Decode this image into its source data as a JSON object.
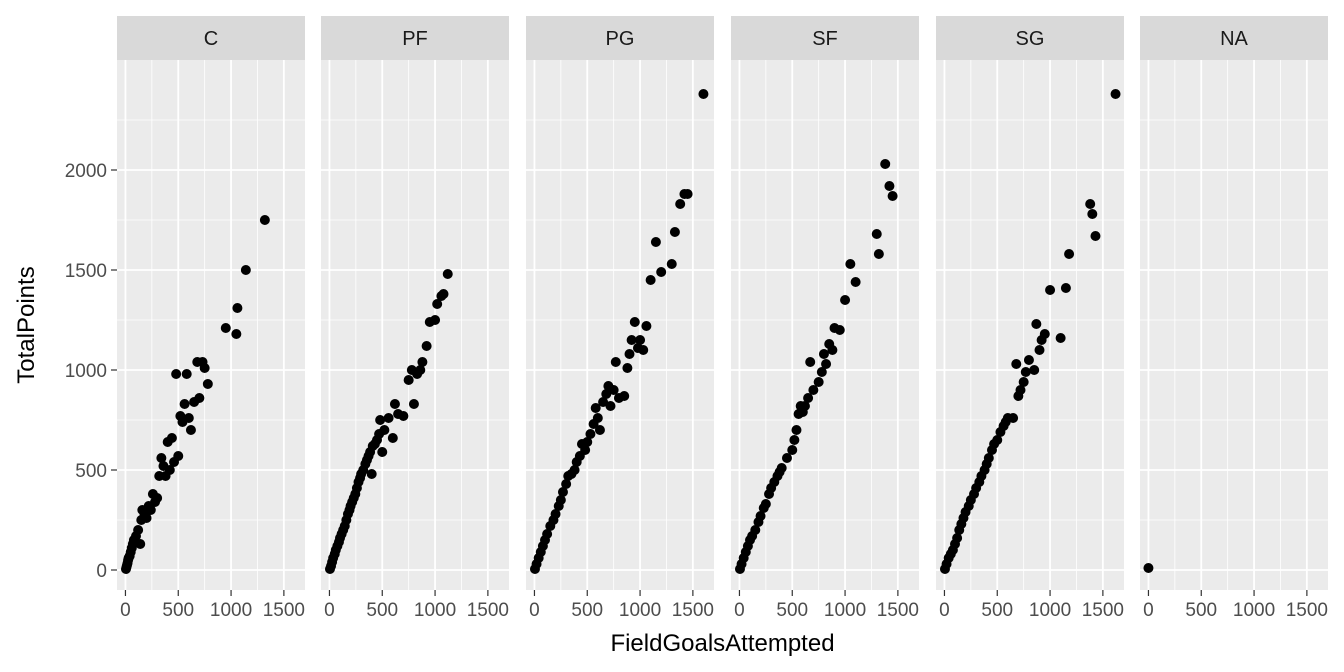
{
  "chart_data": {
    "type": "scatter",
    "facet_by": "position",
    "xlabel": "FieldGoalsAttempted",
    "ylabel": "TotalPoints",
    "xlim": [
      -80,
      1700
    ],
    "ylim": [
      -100,
      2550
    ],
    "x_ticks": [
      0,
      500,
      1000,
      1500
    ],
    "x_tick_labels": [
      "0",
      "500",
      "1000",
      "1500"
    ],
    "y_ticks": [
      0,
      500,
      1000,
      1500,
      2000
    ],
    "y_tick_labels": [
      "0",
      "500",
      "1000",
      "1500",
      "2000"
    ],
    "grid": true,
    "colors": {
      "panel_bg": "#EBEBEB",
      "strip_bg": "#D9D9D9",
      "grid_major": "#FFFFFF",
      "point": "#000000"
    },
    "panels": [
      {
        "name": "C",
        "points": [
          [
            5,
            5
          ],
          [
            10,
            15
          ],
          [
            15,
            25
          ],
          [
            20,
            35
          ],
          [
            25,
            50
          ],
          [
            30,
            60
          ],
          [
            40,
            70
          ],
          [
            50,
            90
          ],
          [
            60,
            110
          ],
          [
            70,
            130
          ],
          [
            80,
            150
          ],
          [
            100,
            170
          ],
          [
            120,
            200
          ],
          [
            140,
            130
          ],
          [
            150,
            250
          ],
          [
            160,
            300
          ],
          [
            180,
            280
          ],
          [
            200,
            260
          ],
          [
            220,
            320
          ],
          [
            240,
            300
          ],
          [
            260,
            380
          ],
          [
            280,
            340
          ],
          [
            300,
            360
          ],
          [
            320,
            470
          ],
          [
            340,
            560
          ],
          [
            360,
            520
          ],
          [
            380,
            470
          ],
          [
            400,
            640
          ],
          [
            420,
            500
          ],
          [
            440,
            660
          ],
          [
            460,
            540
          ],
          [
            480,
            980
          ],
          [
            500,
            570
          ],
          [
            520,
            770
          ],
          [
            540,
            740
          ],
          [
            560,
            830
          ],
          [
            580,
            980
          ],
          [
            600,
            760
          ],
          [
            620,
            700
          ],
          [
            650,
            840
          ],
          [
            680,
            1040
          ],
          [
            700,
            860
          ],
          [
            730,
            1040
          ],
          [
            750,
            1010
          ],
          [
            780,
            930
          ],
          [
            950,
            1210
          ],
          [
            1050,
            1180
          ],
          [
            1060,
            1310
          ],
          [
            1140,
            1500
          ],
          [
            1320,
            1750
          ]
        ]
      },
      {
        "name": "PF",
        "points": [
          [
            5,
            5
          ],
          [
            15,
            20
          ],
          [
            25,
            40
          ],
          [
            35,
            60
          ],
          [
            50,
            80
          ],
          [
            60,
            100
          ],
          [
            75,
            120
          ],
          [
            90,
            140
          ],
          [
            100,
            160
          ],
          [
            115,
            180
          ],
          [
            130,
            200
          ],
          [
            145,
            220
          ],
          [
            160,
            250
          ],
          [
            175,
            280
          ],
          [
            190,
            300
          ],
          [
            200,
            320
          ],
          [
            215,
            340
          ],
          [
            230,
            360
          ],
          [
            245,
            380
          ],
          [
            260,
            410
          ],
          [
            275,
            440
          ],
          [
            290,
            460
          ],
          [
            300,
            480
          ],
          [
            320,
            500
          ],
          [
            340,
            530
          ],
          [
            355,
            550
          ],
          [
            370,
            570
          ],
          [
            385,
            590
          ],
          [
            400,
            480
          ],
          [
            410,
            620
          ],
          [
            430,
            630
          ],
          [
            450,
            650
          ],
          [
            470,
            680
          ],
          [
            480,
            750
          ],
          [
            500,
            590
          ],
          [
            520,
            700
          ],
          [
            560,
            760
          ],
          [
            600,
            660
          ],
          [
            620,
            830
          ],
          [
            650,
            780
          ],
          [
            700,
            770
          ],
          [
            750,
            950
          ],
          [
            780,
            1000
          ],
          [
            800,
            830
          ],
          [
            830,
            980
          ],
          [
            860,
            1000
          ],
          [
            880,
            1040
          ],
          [
            920,
            1120
          ],
          [
            950,
            1240
          ],
          [
            1000,
            1250
          ],
          [
            1020,
            1330
          ],
          [
            1060,
            1370
          ],
          [
            1080,
            1380
          ],
          [
            1120,
            1480
          ]
        ]
      },
      {
        "name": "PG",
        "points": [
          [
            5,
            5
          ],
          [
            20,
            30
          ],
          [
            40,
            60
          ],
          [
            60,
            90
          ],
          [
            80,
            120
          ],
          [
            100,
            150
          ],
          [
            120,
            180
          ],
          [
            150,
            220
          ],
          [
            180,
            250
          ],
          [
            200,
            280
          ],
          [
            230,
            320
          ],
          [
            250,
            350
          ],
          [
            270,
            390
          ],
          [
            300,
            430
          ],
          [
            320,
            470
          ],
          [
            350,
            480
          ],
          [
            380,
            500
          ],
          [
            400,
            540
          ],
          [
            430,
            570
          ],
          [
            450,
            630
          ],
          [
            480,
            600
          ],
          [
            500,
            640
          ],
          [
            530,
            680
          ],
          [
            560,
            730
          ],
          [
            580,
            810
          ],
          [
            600,
            760
          ],
          [
            620,
            700
          ],
          [
            650,
            840
          ],
          [
            680,
            880
          ],
          [
            700,
            920
          ],
          [
            720,
            820
          ],
          [
            750,
            900
          ],
          [
            770,
            1040
          ],
          [
            800,
            860
          ],
          [
            850,
            870
          ],
          [
            880,
            1010
          ],
          [
            900,
            1080
          ],
          [
            920,
            1150
          ],
          [
            950,
            1240
          ],
          [
            980,
            1110
          ],
          [
            1000,
            1150
          ],
          [
            1030,
            1100
          ],
          [
            1060,
            1220
          ],
          [
            1100,
            1450
          ],
          [
            1150,
            1640
          ],
          [
            1200,
            1490
          ],
          [
            1300,
            1530
          ],
          [
            1330,
            1690
          ],
          [
            1380,
            1830
          ],
          [
            1420,
            1880
          ],
          [
            1450,
            1880
          ],
          [
            1600,
            2380
          ]
        ]
      },
      {
        "name": "SF",
        "points": [
          [
            5,
            5
          ],
          [
            20,
            30
          ],
          [
            40,
            60
          ],
          [
            60,
            90
          ],
          [
            80,
            120
          ],
          [
            100,
            150
          ],
          [
            120,
            170
          ],
          [
            150,
            200
          ],
          [
            180,
            240
          ],
          [
            200,
            270
          ],
          [
            230,
            310
          ],
          [
            250,
            330
          ],
          [
            280,
            380
          ],
          [
            300,
            410
          ],
          [
            330,
            440
          ],
          [
            360,
            470
          ],
          [
            380,
            490
          ],
          [
            400,
            510
          ],
          [
            450,
            560
          ],
          [
            500,
            600
          ],
          [
            520,
            650
          ],
          [
            540,
            700
          ],
          [
            560,
            780
          ],
          [
            580,
            820
          ],
          [
            600,
            790
          ],
          [
            620,
            820
          ],
          [
            650,
            860
          ],
          [
            670,
            1040
          ],
          [
            700,
            900
          ],
          [
            750,
            940
          ],
          [
            780,
            990
          ],
          [
            800,
            1080
          ],
          [
            820,
            1030
          ],
          [
            850,
            1130
          ],
          [
            880,
            1100
          ],
          [
            900,
            1210
          ],
          [
            950,
            1200
          ],
          [
            1000,
            1350
          ],
          [
            1050,
            1530
          ],
          [
            1100,
            1440
          ],
          [
            1300,
            1680
          ],
          [
            1320,
            1580
          ],
          [
            1380,
            2030
          ],
          [
            1420,
            1920
          ],
          [
            1450,
            1870
          ]
        ]
      },
      {
        "name": "SG",
        "points": [
          [
            5,
            5
          ],
          [
            20,
            30
          ],
          [
            40,
            60
          ],
          [
            60,
            80
          ],
          [
            80,
            100
          ],
          [
            100,
            130
          ],
          [
            120,
            160
          ],
          [
            140,
            200
          ],
          [
            160,
            230
          ],
          [
            180,
            260
          ],
          [
            200,
            290
          ],
          [
            230,
            320
          ],
          [
            250,
            350
          ],
          [
            280,
            380
          ],
          [
            300,
            410
          ],
          [
            330,
            440
          ],
          [
            350,
            470
          ],
          [
            380,
            500
          ],
          [
            400,
            530
          ],
          [
            420,
            560
          ],
          [
            450,
            600
          ],
          [
            470,
            630
          ],
          [
            500,
            650
          ],
          [
            530,
            690
          ],
          [
            560,
            720
          ],
          [
            580,
            740
          ],
          [
            600,
            760
          ],
          [
            650,
            760
          ],
          [
            680,
            1030
          ],
          [
            700,
            870
          ],
          [
            720,
            900
          ],
          [
            750,
            940
          ],
          [
            770,
            990
          ],
          [
            800,
            1050
          ],
          [
            850,
            1000
          ],
          [
            870,
            1230
          ],
          [
            900,
            1100
          ],
          [
            920,
            1150
          ],
          [
            950,
            1180
          ],
          [
            1000,
            1400
          ],
          [
            1100,
            1160
          ],
          [
            1150,
            1410
          ],
          [
            1180,
            1580
          ],
          [
            1380,
            1830
          ],
          [
            1400,
            1780
          ],
          [
            1430,
            1670
          ],
          [
            1620,
            2380
          ]
        ]
      },
      {
        "name": "NA",
        "points": [
          [
            0,
            10
          ]
        ]
      }
    ]
  }
}
